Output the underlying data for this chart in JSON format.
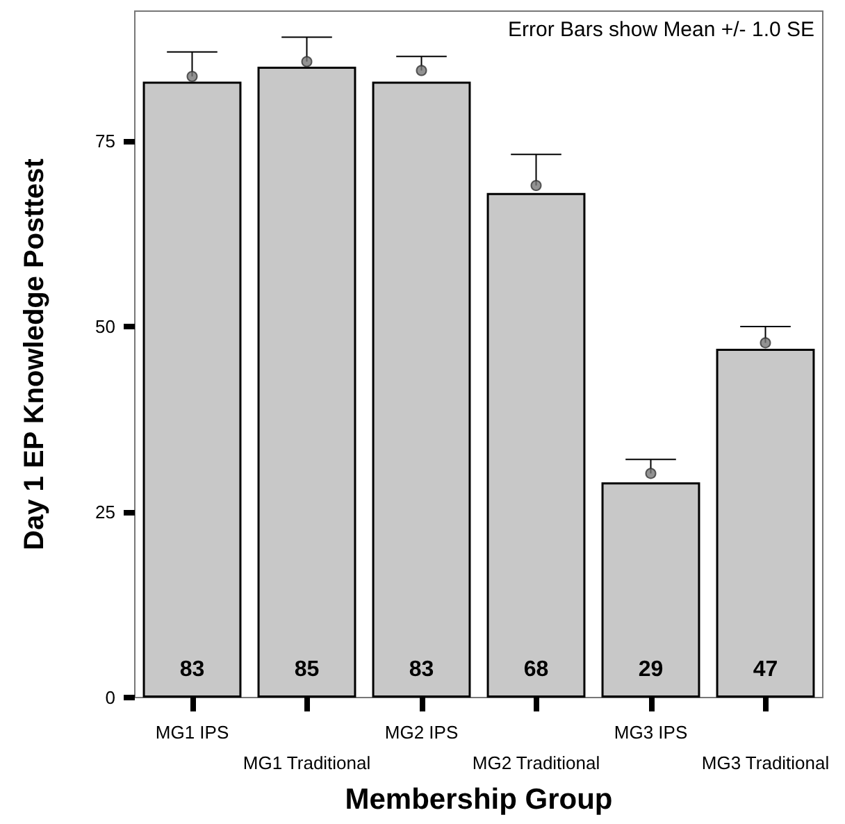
{
  "chart_data": {
    "type": "bar",
    "xlabel": "Membership Group",
    "ylabel": "Day 1 EP Knowledge Posttest",
    "categories": [
      "MG1 IPS",
      "MG1 Traditional",
      "MG2 IPS",
      "MG2 Traditional",
      "MG3 IPS",
      "MG3 Traditional"
    ],
    "series": [
      {
        "color": "#c8c8c8",
        "values": [
          83,
          85,
          83,
          68,
          29,
          47
        ],
        "value_labels": [
          "83",
          "85",
          "83",
          "68",
          "29",
          "47"
        ]
      },
      {
        "type": "scatter",
        "color": "#777777",
        "marker": "circle",
        "x": [
          "MG1 IPS",
          "MG1 Traditional",
          "MG2 IPS",
          "MG2 Traditional",
          "MG3 IPS",
          "MG3 Traditional"
        ],
        "values": [
          83.7,
          85.7,
          84.5,
          69.0,
          30.2,
          47.8
        ],
        "errors": [
          3.3,
          3.3,
          1.9,
          4.2,
          1.9,
          2.2
        ]
      }
    ],
    "ylim": [
      0,
      92.5
    ],
    "yticks": [
      0,
      25,
      50,
      75
    ],
    "grid": false,
    "annotations": [
      "Error Bars show Mean +/- 1.0 SE"
    ]
  }
}
